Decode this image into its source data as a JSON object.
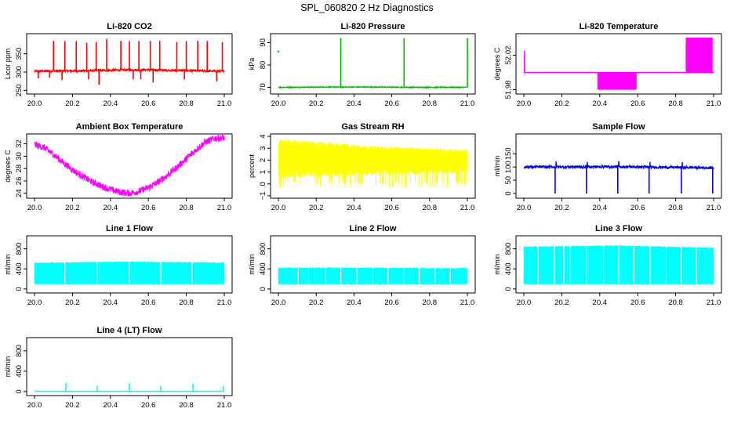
{
  "figure_title": "SPL_060820  2 Hz Diagnostics",
  "chart_data": [
    {
      "id": "co2",
      "type": "line",
      "title": "Li-820 CO2",
      "ylabel": "Licor ppm",
      "color": "#ff0000",
      "xlim": [
        0.0,
        1.0
      ],
      "ylim": [
        240,
        405
      ],
      "xticks": [
        0.0,
        0.2,
        0.4,
        0.6,
        0.8,
        1.0
      ],
      "xtick_labels": [
        "20.0",
        "20.2",
        "20.4",
        "20.6",
        "20.8",
        "21.0"
      ],
      "yticks": [
        250,
        300,
        350
      ],
      "ytick_labels": [
        "250",
        "300",
        "350"
      ],
      "series": [
        {
          "name": "baseline",
          "x": [
            0.0,
            0.1,
            0.2,
            0.3,
            0.4,
            0.5,
            0.6,
            0.7,
            0.8,
            0.9,
            1.0
          ],
          "y": [
            302,
            303,
            303,
            304,
            305,
            306,
            306,
            305,
            304,
            303,
            302
          ],
          "noise": 3
        },
        {
          "name": "spikes",
          "kind": "spikes",
          "x": [
            0.1,
            0.16,
            0.22,
            0.275,
            0.325,
            0.38,
            0.455,
            0.5,
            0.55,
            0.61,
            0.66,
            0.75,
            0.8,
            0.86,
            0.91,
            0.99
          ],
          "y": [
            385,
            385,
            385,
            380,
            382,
            390,
            385,
            385,
            385,
            385,
            385,
            382,
            385,
            385,
            385,
            382
          ]
        },
        {
          "name": "dips",
          "kind": "spikes",
          "x": [
            0.02,
            0.08,
            0.145,
            0.285,
            0.34,
            0.52,
            0.56,
            0.625,
            0.79,
            0.96
          ],
          "y": [
            283,
            285,
            278,
            280,
            265,
            280,
            280,
            272,
            280,
            275
          ]
        }
      ]
    },
    {
      "id": "pressure",
      "type": "line",
      "title": "Li-820 Pressure",
      "ylabel": "kPa",
      "color": "#00bb00",
      "xlim": [
        0.0,
        1.0
      ],
      "ylim": [
        67,
        94
      ],
      "xticks": [
        0.0,
        0.2,
        0.4,
        0.6,
        0.8,
        1.0
      ],
      "xtick_labels": [
        "20.0",
        "20.2",
        "20.4",
        "20.6",
        "20.8",
        "21.0"
      ],
      "yticks": [
        70,
        80,
        90
      ],
      "ytick_labels": [
        "70",
        "80",
        "90"
      ],
      "series": [
        {
          "name": "baseline",
          "x": [
            0.0,
            0.25,
            0.5,
            0.75,
            1.0
          ],
          "y": [
            70.0,
            70.1,
            70.1,
            70.0,
            70.0
          ],
          "noise": 0.2
        },
        {
          "name": "spikes",
          "kind": "spikes",
          "x": [
            0.33,
            0.665,
            1.0
          ],
          "y": [
            92,
            92,
            92
          ]
        },
        {
          "name": "outlier",
          "kind": "points",
          "x": [
            0.0
          ],
          "y": [
            86
          ]
        }
      ]
    },
    {
      "id": "licor_temp",
      "type": "line",
      "title": "Li-820 Temperature",
      "ylabel": "degrees C",
      "color": "#ff00ff",
      "xlim": [
        0.0,
        1.0
      ],
      "ylim": [
        51.975,
        52.045
      ],
      "xticks": [
        0.0,
        0.2,
        0.4,
        0.6,
        0.8,
        1.0
      ],
      "xtick_labels": [
        "20.0",
        "20.2",
        "20.4",
        "20.6",
        "20.8",
        "21.0"
      ],
      "yticks": [
        51.98,
        52.02
      ],
      "ytick_labels": [
        "51.98",
        "52.02"
      ],
      "series": [
        {
          "name": "level",
          "x": [
            0.0,
            1.0
          ],
          "y": [
            52.0,
            52.0
          ]
        },
        {
          "name": "low_toggle",
          "kind": "square",
          "x0": 0.39,
          "x1": 0.595,
          "ylow": 51.98,
          "yhigh": 52.0,
          "count": 36
        },
        {
          "name": "high_toggle",
          "kind": "square",
          "x0": 0.855,
          "x1": 0.995,
          "ylow": 52.0,
          "yhigh": 52.04,
          "count": 30
        },
        {
          "name": "start_spike",
          "kind": "spikes",
          "x": [
            0.003
          ],
          "y": [
            52.025
          ]
        }
      ]
    },
    {
      "id": "box_temp",
      "type": "line",
      "title": "Ambient Box Temperature",
      "ylabel": "degrees C",
      "color": "#ff00ff",
      "xlim": [
        0.0,
        1.0
      ],
      "ylim": [
        23.2,
        33.6
      ],
      "xticks": [
        0.0,
        0.2,
        0.4,
        0.6,
        0.8,
        1.0
      ],
      "xtick_labels": [
        "20.0",
        "20.2",
        "20.4",
        "20.6",
        "20.8",
        "21.0"
      ],
      "yticks": [
        24,
        26,
        28,
        30,
        32
      ],
      "ytick_labels": [
        "24",
        "26",
        "28",
        "30",
        "32"
      ],
      "series": [
        {
          "name": "temp",
          "x": [
            0.0,
            0.05,
            0.1,
            0.15,
            0.2,
            0.25,
            0.3,
            0.35,
            0.4,
            0.45,
            0.5,
            0.55,
            0.6,
            0.65,
            0.7,
            0.75,
            0.8,
            0.85,
            0.9,
            0.95,
            1.0
          ],
          "y": [
            31.9,
            31.4,
            30.3,
            29.0,
            27.8,
            26.8,
            25.9,
            25.2,
            24.6,
            24.2,
            24.0,
            24.3,
            24.9,
            25.8,
            26.9,
            28.2,
            29.6,
            31.0,
            32.3,
            32.9,
            33.0
          ],
          "noise": 0.55
        }
      ]
    },
    {
      "id": "rh",
      "type": "line",
      "title": "Gas Stream RH",
      "ylabel": "percent",
      "color": "#ffff00",
      "xlim": [
        0.0,
        1.0
      ],
      "ylim": [
        -1.2,
        4.2
      ],
      "xticks": [
        0.0,
        0.2,
        0.4,
        0.6,
        0.8,
        1.0
      ],
      "xtick_labels": [
        "20.0",
        "20.2",
        "20.4",
        "20.6",
        "20.8",
        "21.0"
      ],
      "yticks": [
        -1,
        0,
        1,
        2,
        3,
        4
      ],
      "ytick_labels": [
        "−1",
        "0",
        "1",
        "2",
        "3",
        "4"
      ],
      "series": [
        {
          "name": "band",
          "kind": "band",
          "x": [
            0.0,
            0.5,
            1.0
          ],
          "ylow": [
            0.5,
            0.7,
            0.9
          ],
          "yhigh": [
            3.8,
            3.2,
            2.9
          ],
          "spike_low": -0.3
        }
      ]
    },
    {
      "id": "sample_flow",
      "type": "line",
      "title": "Sample Flow",
      "ylabel": "ml/min",
      "color": "#0000dd",
      "xlim": [
        0.0,
        1.0
      ],
      "ylim": [
        -18,
        225
      ],
      "xticks": [
        0.0,
        0.2,
        0.4,
        0.6,
        0.8,
        1.0
      ],
      "xtick_labels": [
        "20.0",
        "20.2",
        "20.4",
        "20.6",
        "20.8",
        "21.0"
      ],
      "yticks": [
        0,
        50,
        100,
        150
      ],
      "ytick_labels": [
        "0",
        "50",
        "100",
        "150"
      ],
      "series": [
        {
          "name": "flow",
          "x": [
            0.0,
            0.5,
            1.0
          ],
          "y": [
            100,
            101,
            97
          ],
          "noise": 5
        },
        {
          "name": "dips",
          "kind": "spikes",
          "x": [
            0.165,
            0.33,
            0.495,
            0.66,
            0.83,
            0.995
          ],
          "y": [
            0,
            0,
            0,
            0,
            0,
            0
          ]
        },
        {
          "name": "peaks",
          "kind": "spikes",
          "x": [
            0.17,
            0.335,
            0.5,
            0.665,
            0.835
          ],
          "y": [
            120,
            118,
            122,
            118,
            118
          ]
        }
      ]
    },
    {
      "id": "line1",
      "type": "area",
      "title": "Line 1 Flow",
      "ylabel": "ml/min",
      "color": "#00ffff",
      "xlim": [
        0.0,
        1.0
      ],
      "ylim": [
        -80,
        1060
      ],
      "xticks": [
        0.0,
        0.2,
        0.4,
        0.6,
        0.8,
        1.0
      ],
      "xtick_labels": [
        "20.0",
        "20.2",
        "20.4",
        "20.6",
        "20.8",
        "21.0"
      ],
      "yticks": [
        0,
        400,
        800
      ],
      "ytick_labels": [
        "0",
        "400",
        "800"
      ],
      "series": [
        {
          "name": "band",
          "kind": "blocks",
          "x": [
            0.0,
            0.5,
            1.0
          ],
          "ylow": [
            100,
            100,
            100
          ],
          "yhigh": [
            520,
            540,
            520
          ],
          "gaps": [
            0.16,
            0.33,
            0.5,
            0.665,
            0.83
          ]
        }
      ]
    },
    {
      "id": "line2",
      "type": "area",
      "title": "Line 2 Flow",
      "ylabel": "ml/min",
      "color": "#00ffff",
      "xlim": [
        0.0,
        1.0
      ],
      "ylim": [
        -80,
        1060
      ],
      "xticks": [
        0.0,
        0.2,
        0.4,
        0.6,
        0.8,
        1.0
      ],
      "xtick_labels": [
        "20.0",
        "20.2",
        "20.4",
        "20.6",
        "20.8",
        "21.0"
      ],
      "yticks": [
        0,
        400,
        800
      ],
      "ytick_labels": [
        "0",
        "400",
        "800"
      ],
      "series": [
        {
          "name": "band",
          "kind": "blocks",
          "x": [
            0.0,
            0.5,
            1.0
          ],
          "ylow": [
            100,
            100,
            100
          ],
          "yhigh": [
            420,
            420,
            410
          ],
          "gaps": [
            0.105,
            0.16,
            0.25,
            0.33,
            0.415,
            0.5,
            0.58,
            0.665,
            0.745,
            0.83,
            0.91
          ]
        }
      ]
    },
    {
      "id": "line3",
      "type": "area",
      "title": "Line 3 Flow",
      "ylabel": "ml/min",
      "color": "#00ffff",
      "xlim": [
        0.0,
        1.0
      ],
      "ylim": [
        -80,
        1060
      ],
      "xticks": [
        0.0,
        0.2,
        0.4,
        0.6,
        0.8,
        1.0
      ],
      "xtick_labels": [
        "20.0",
        "20.2",
        "20.4",
        "20.6",
        "20.8",
        "21.0"
      ],
      "yticks": [
        0,
        400,
        800
      ],
      "ytick_labels": [
        "0",
        "400",
        "800"
      ],
      "series": [
        {
          "name": "band",
          "kind": "blocks",
          "x": [
            0.0,
            0.5,
            1.0
          ],
          "ylow": [
            100,
            100,
            100
          ],
          "yhigh": [
            840,
            860,
            820
          ],
          "gaps": [
            0.075,
            0.16,
            0.21,
            0.245,
            0.33,
            0.42,
            0.5,
            0.58,
            0.665,
            0.75,
            0.83,
            0.91
          ]
        }
      ]
    },
    {
      "id": "line4",
      "type": "line",
      "title": "Line 4 (LT) Flow",
      "ylabel": "ml/min",
      "color": "#00ffff",
      "xlim": [
        0.0,
        1.0
      ],
      "ylim": [
        -80,
        1060
      ],
      "xticks": [
        0.0,
        0.2,
        0.4,
        0.6,
        0.8,
        1.0
      ],
      "xtick_labels": [
        "20.0",
        "20.2",
        "20.4",
        "20.6",
        "20.8",
        "21.0"
      ],
      "yticks": [
        0,
        400,
        800
      ],
      "ytick_labels": [
        "0",
        "400",
        "800"
      ],
      "series": [
        {
          "name": "flow",
          "x": [
            0.0,
            1.0
          ],
          "y": [
            5,
            5
          ]
        },
        {
          "name": "spikes",
          "kind": "spikes",
          "x": [
            0.165,
            0.33,
            0.5,
            0.665,
            0.835,
            0.995
          ],
          "y": [
            170,
            110,
            160,
            110,
            150,
            110
          ]
        }
      ]
    }
  ]
}
